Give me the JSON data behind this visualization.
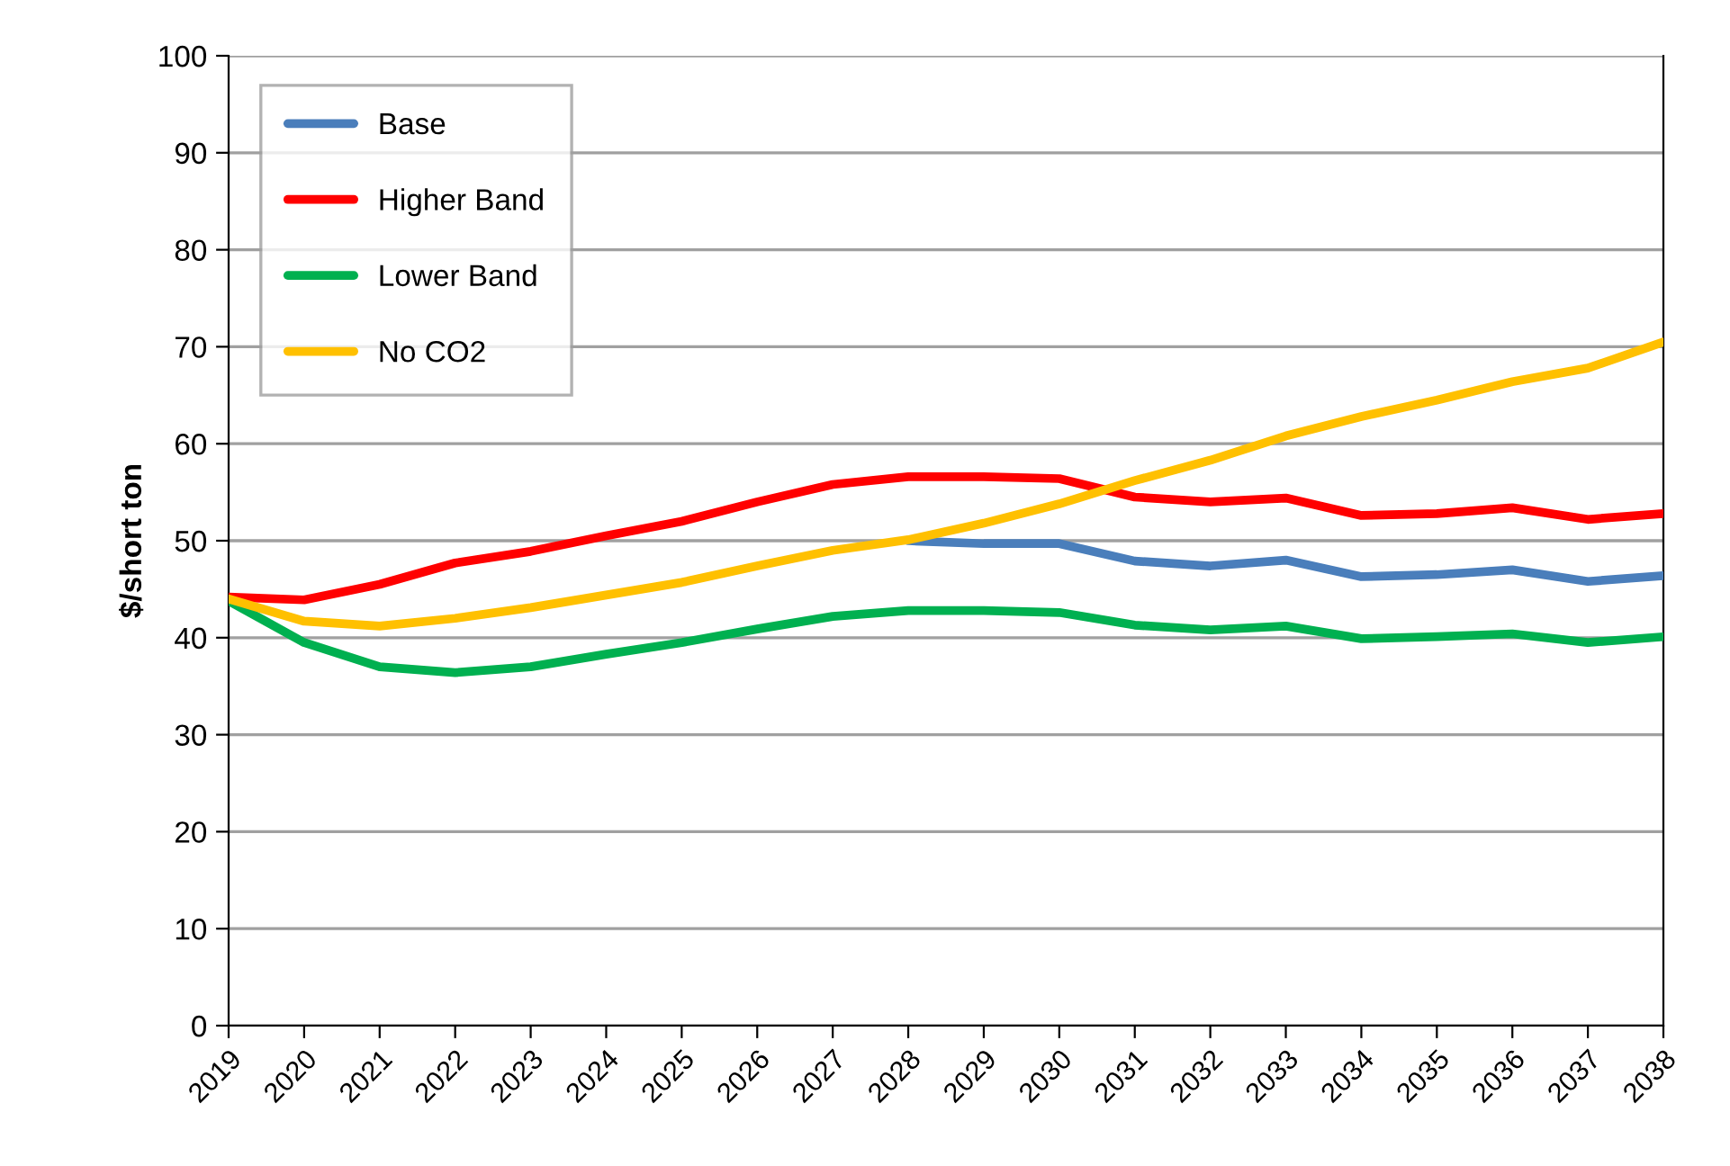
{
  "chart_data": {
    "type": "line",
    "ylabel": "$/short ton",
    "categories": [
      "2019",
      "2020",
      "2021",
      "2022",
      "2023",
      "2024",
      "2025",
      "2026",
      "2027",
      "2028",
      "2029",
      "2030",
      "2031",
      "2032",
      "2033",
      "2034",
      "2035",
      "2036",
      "2037",
      "2038"
    ],
    "series": [
      {
        "name": "Base",
        "color": "#4a7ebb",
        "values": [
          null,
          null,
          null,
          null,
          null,
          null,
          null,
          null,
          null,
          50,
          49.7,
          49.7,
          47.9,
          47.4,
          48.0,
          46.3,
          46.5,
          47.0,
          45.8,
          46.4
        ]
      },
      {
        "name": "Higher Band",
        "color": "#ff0000",
        "values": [
          44.2,
          43.9,
          45.5,
          47.7,
          48.9,
          50.5,
          52.0,
          54.0,
          55.8,
          56.6,
          56.6,
          56.4,
          54.5,
          54.0,
          54.4,
          52.6,
          52.8,
          53.4,
          52.2,
          52.8
        ]
      },
      {
        "name": "Lower Band",
        "color": "#00b050",
        "values": [
          43.8,
          39.5,
          37.0,
          36.4,
          37.0,
          38.3,
          39.5,
          40.9,
          42.2,
          42.8,
          42.8,
          42.6,
          41.3,
          40.8,
          41.2,
          39.9,
          40.1,
          40.4,
          39.5,
          40.1
        ]
      },
      {
        "name": "No CO2",
        "color": "#ffc000",
        "values": [
          44.0,
          41.7,
          41.2,
          42.0,
          43.1,
          44.4,
          45.7,
          47.4,
          49.0,
          50.1,
          51.8,
          53.8,
          56.2,
          58.3,
          60.8,
          62.8,
          64.5,
          66.4,
          67.8,
          70.5
        ]
      }
    ],
    "ylim": [
      0,
      100
    ],
    "yticks": [
      0,
      10,
      20,
      30,
      40,
      50,
      60,
      70,
      80,
      90,
      100
    ],
    "grid": "y",
    "legend": "top left",
    "marker": "none",
    "line_style": "solid"
  }
}
